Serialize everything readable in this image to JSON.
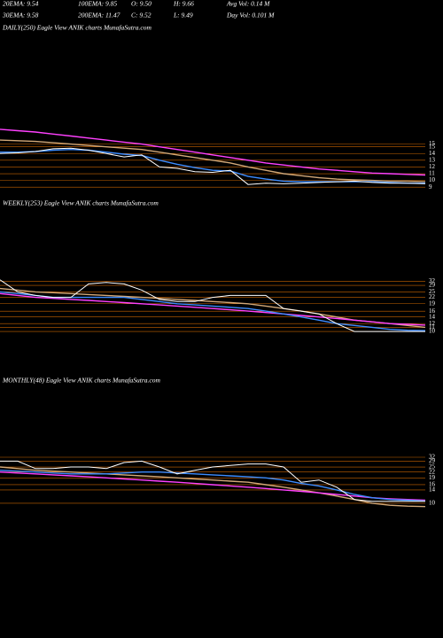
{
  "header": {
    "row1": [
      "20EMA: 9.54",
      "100EMA: 9.85",
      "O: 9.50",
      "H: 9.66",
      "Avg Vol: 0.14  M"
    ],
    "row2": [
      "30EMA: 9.58",
      "200EMA: 11.47",
      "C: 9.52",
      "L: 9.49",
      "Day Vol: 0.101  M"
    ]
  },
  "chart_data": [
    {
      "type": "line",
      "title": "DAILY(250) Eagle  View  ANIK charts MunafaSutra.com",
      "log_scale": false,
      "grid": true,
      "grid_color": "#c86400",
      "ylim": [
        8.5,
        19.7
      ],
      "yticks": [
        {
          "value": 15.4,
          "label": "15"
        },
        15,
        14,
        13,
        12,
        11,
        10,
        9
      ],
      "series": [
        {
          "color": "#d2a878",
          "values": [
            16.0,
            15.9,
            15.8,
            15.6,
            15.4,
            15.2,
            15.0,
            14.8,
            14.6,
            14.2,
            13.8,
            13.4,
            13.0,
            12.6,
            12.0,
            11.5,
            11.0,
            10.7,
            10.4,
            10.2,
            10.1,
            10.0,
            9.9,
            9.9,
            9.8
          ]
        },
        {
          "color": "#ff40ff",
          "values": [
            17.6,
            17.4,
            17.2,
            16.9,
            16.6,
            16.3,
            16.0,
            15.7,
            15.4,
            15.0,
            14.6,
            14.2,
            13.8,
            13.4,
            13.0,
            12.6,
            12.3,
            12.0,
            11.7,
            11.5,
            11.3,
            11.1,
            11.0,
            10.9,
            10.8
          ]
        },
        {
          "color": "#3c8cff",
          "values": [
            14.2,
            14.2,
            14.3,
            14.5,
            14.6,
            14.5,
            14.2,
            13.9,
            13.7,
            13.0,
            12.4,
            11.9,
            11.5,
            11.4,
            10.6,
            10.2,
            9.9,
            9.8,
            9.8,
            9.8,
            9.8,
            9.8,
            9.7,
            9.6,
            9.6
          ]
        },
        {
          "color": "#ffffff",
          "values": [
            14.0,
            14.1,
            14.3,
            14.7,
            14.8,
            14.5,
            14.0,
            13.5,
            13.8,
            12.0,
            11.8,
            11.3,
            11.2,
            11.5,
            9.4,
            9.6,
            9.5,
            9.6,
            9.7,
            9.8,
            9.9,
            9.7,
            9.6,
            9.6,
            9.5
          ]
        }
      ]
    },
    {
      "type": "line",
      "title": "WEEKLY(253) Eagle  View  ANIK charts MunafaSutra.com",
      "log_scale": true,
      "grid": true,
      "grid_color": "#c86400",
      "ylim": [
        8,
        45.6
      ],
      "yticks": [
        32,
        29,
        25,
        22,
        19,
        16,
        14,
        12,
        11,
        10
      ],
      "series": [
        {
          "color": "#d2a878",
          "values": [
            27,
            26,
            25,
            24.5,
            24,
            23.5,
            23,
            22.5,
            22,
            21.5,
            21,
            20.5,
            20,
            19.5,
            19,
            18,
            17,
            16,
            15,
            14,
            13,
            12.5,
            12,
            11.5,
            11
          ]
        },
        {
          "color": "#ff40ff",
          "values": [
            24,
            23,
            22,
            21.5,
            21,
            20.5,
            20,
            19.5,
            19,
            18.5,
            18,
            17.5,
            17,
            16.5,
            16,
            15.5,
            15,
            14.5,
            14,
            13.5,
            13,
            12.5,
            12,
            11.8,
            11.6
          ]
        },
        {
          "color": "#3c8cff",
          "values": [
            25,
            24,
            23,
            22,
            22,
            22,
            22,
            22,
            21,
            20,
            19,
            18.5,
            18,
            17.5,
            17,
            16,
            15,
            14,
            13,
            12,
            11.5,
            11,
            10.5,
            10.3,
            10.2
          ]
        },
        {
          "color": "#ffffff",
          "values": [
            33,
            25,
            23,
            22,
            22,
            30,
            31,
            30,
            26,
            21,
            20,
            20,
            22,
            23,
            23,
            23,
            17,
            16,
            15,
            12,
            10,
            10,
            10,
            10,
            10
          ]
        }
      ]
    },
    {
      "type": "line",
      "title": "MONTHLY(48) Eagle  View  ANIK charts MunafaSutra.com",
      "log_scale": true,
      "grid": true,
      "grid_color": "#c86400",
      "ylim": [
        6.1,
        45.8
      ],
      "yticks": [
        32,
        29,
        25,
        22,
        19,
        16,
        14,
        10
      ],
      "series": [
        {
          "color": "#d2a878",
          "values": [
            25,
            24,
            23,
            22.5,
            22,
            21.5,
            21,
            20.5,
            20,
            19.5,
            19,
            18.5,
            18,
            17.5,
            17,
            16,
            15,
            14,
            13,
            12,
            11,
            10,
            9.5,
            9.3,
            9.2
          ]
        },
        {
          "color": "#ff40ff",
          "values": [
            22,
            21.5,
            21,
            20.5,
            20,
            19.5,
            19,
            18.5,
            18,
            17.5,
            17,
            16.5,
            16,
            15.5,
            15,
            14.5,
            14,
            13.5,
            13,
            12.5,
            12,
            11.5,
            11.2,
            11,
            10.8
          ]
        },
        {
          "color": "#3c8cff",
          "values": [
            23,
            22.5,
            22,
            21.5,
            21,
            21,
            21,
            21.5,
            22,
            22,
            21.5,
            21,
            20.5,
            20,
            19.5,
            19,
            18,
            16.5,
            15.5,
            14,
            12.5,
            11.5,
            11,
            10.8,
            10.6
          ]
        },
        {
          "color": "#ffffff",
          "values": [
            29,
            29,
            24,
            24,
            25,
            25,
            24,
            28,
            29,
            25,
            21,
            23,
            25,
            26,
            27,
            27,
            25,
            17,
            18,
            15,
            11,
            10.5,
            10.5,
            10.5,
            10.5
          ]
        }
      ]
    }
  ]
}
